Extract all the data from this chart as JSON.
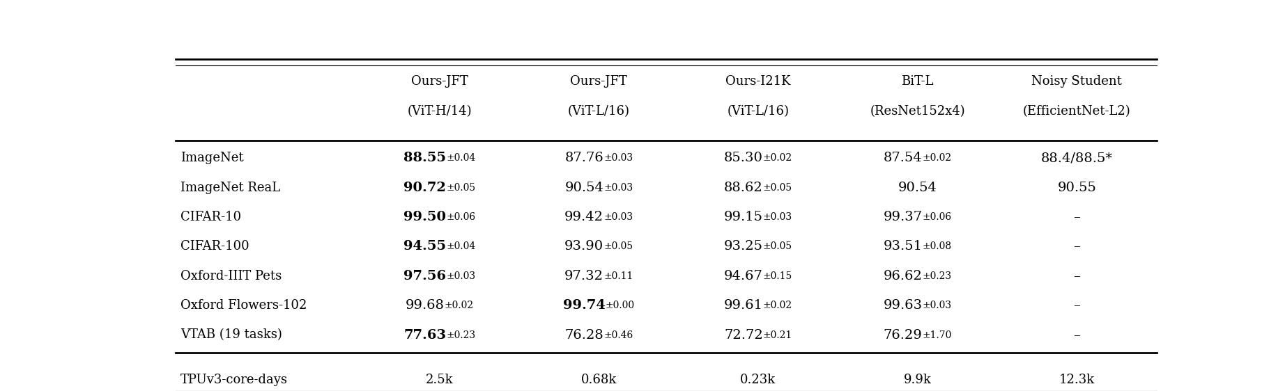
{
  "col_headers": [
    [
      "Ours-JFT",
      "(ViT-H/14)"
    ],
    [
      "Ours-JFT",
      "(ViT-L/16)"
    ],
    [
      "Ours-I21K",
      "(ViT-L/16)"
    ],
    [
      "BiT-L",
      "(ResNet152x4)"
    ],
    [
      "Noisy Student",
      "(EfficientNet-L2)"
    ]
  ],
  "row_labels": [
    "ImageNet",
    "ImageNet ReaL",
    "CIFAR-10",
    "CIFAR-100",
    "Oxford-IIIT Pets",
    "Oxford Flowers-102",
    "VTAB (19 tasks)"
  ],
  "data": [
    [
      [
        "88.55",
        "±0.04",
        true
      ],
      [
        "87.76",
        "±0.03",
        false
      ],
      [
        "85.30",
        "±0.02",
        false
      ],
      [
        "87.54",
        "±0.02",
        false
      ],
      [
        "88.4/88.5*",
        "",
        false
      ]
    ],
    [
      [
        "90.72",
        "±0.05",
        true
      ],
      [
        "90.54",
        "±0.03",
        false
      ],
      [
        "88.62",
        "±0.05",
        false
      ],
      [
        "90.54",
        "",
        false
      ],
      [
        "90.55",
        "",
        false
      ]
    ],
    [
      [
        "99.50",
        "±0.06",
        true
      ],
      [
        "99.42",
        "±0.03",
        false
      ],
      [
        "99.15",
        "±0.03",
        false
      ],
      [
        "99.37",
        "±0.06",
        false
      ],
      [
        "–",
        "",
        false
      ]
    ],
    [
      [
        "94.55",
        "±0.04",
        true
      ],
      [
        "93.90",
        "±0.05",
        false
      ],
      [
        "93.25",
        "±0.05",
        false
      ],
      [
        "93.51",
        "±0.08",
        false
      ],
      [
        "–",
        "",
        false
      ]
    ],
    [
      [
        "97.56",
        "±0.03",
        true
      ],
      [
        "97.32",
        "±0.11",
        false
      ],
      [
        "94.67",
        "±0.15",
        false
      ],
      [
        "96.62",
        "±0.23",
        false
      ],
      [
        "–",
        "",
        false
      ]
    ],
    [
      [
        "99.68",
        "±0.02",
        false
      ],
      [
        "99.74",
        "±0.00",
        true
      ],
      [
        "99.61",
        "±0.02",
        false
      ],
      [
        "99.63",
        "±0.03",
        false
      ],
      [
        "–",
        "",
        false
      ]
    ],
    [
      [
        "77.63",
        "±0.23",
        true
      ],
      [
        "76.28",
        "±0.46",
        false
      ],
      [
        "72.72",
        "±0.21",
        false
      ],
      [
        "76.29",
        "±1.70",
        false
      ],
      [
        "–",
        "",
        false
      ]
    ]
  ],
  "footer_label": "TPUv3-core-days",
  "footer_data": [
    "2.5k",
    "0.68k",
    "0.23k",
    "9.9k",
    "12.3k"
  ],
  "bg_color": "#ffffff",
  "text_color": "#000000",
  "main_text_size": 14,
  "small_text_size": 10,
  "header_text_size": 13,
  "row_label_size": 13,
  "footer_text_size": 13
}
